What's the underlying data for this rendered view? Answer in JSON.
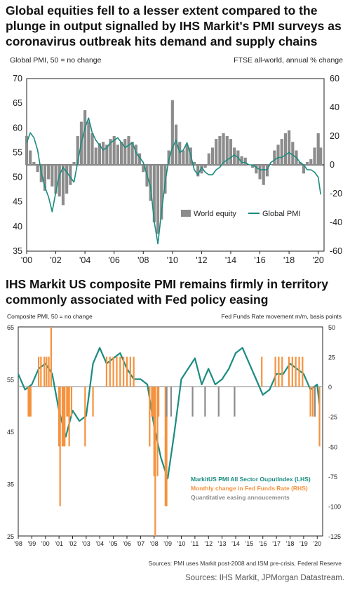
{
  "chart1": {
    "title": "Global equities fell to a lesser extent compared to the plunge in output signalled by IHS Markit's PMI surveys as coronavirus outbreak hits demand and supply chains",
    "left_axis_note": "Global PMI, 50 = no change",
    "right_axis_note": "FTSE all-world,  annual % change",
    "colors": {
      "bar": "#8c8c8c",
      "line": "#1a8c80",
      "zero": "#000000"
    }
  },
  "chart2": {
    "title": "IHS Markit US composite PMI remains firmly in territory commonly associated with Fed policy easing",
    "left_axis_note": "Composite PMI, 50 = no change",
    "right_axis_note": "Fed Funds Rate movement m/m,  basis points",
    "footer_note": "Sources: PMI uses Markit post-2008 and ISM pre-crisis, Federal Reserve",
    "colors": {
      "line": "#1a8c80",
      "orange": "#f5923e",
      "grey": "#8c8c8c",
      "zero": "#999999"
    }
  },
  "source": "Sources: IHS Markit, JPMorgan Datastream.",
  "chart_data": [
    {
      "type": "bar+line",
      "title": "Global equities fell to a lesser extent compared to the plunge in output signalled by IHS Markit's PMI surveys as coronavirus outbreak hits demand and supply chains",
      "ylabel_left": "Global PMI, 50 = no change",
      "ylabel_right": "FTSE all-world,  annual % change",
      "ylim_left": [
        35,
        70
      ],
      "ylim_right": [
        -60,
        60
      ],
      "yticks_left": [
        "70",
        "65",
        "60",
        "55",
        "50",
        "45",
        "40",
        "35"
      ],
      "yticks_right": [
        "60",
        "40",
        "20",
        "0",
        "-20",
        "-40",
        "-60"
      ],
      "xlim": [
        2000,
        2020.4
      ],
      "xticks": [
        "'00",
        "'02",
        "'04",
        "'06",
        "'08",
        "'10",
        "'12",
        "'14",
        "'16",
        "'18",
        "'20"
      ],
      "legend": [
        "World equity",
        "Global PMI"
      ],
      "legend_position": "bottom-right",
      "series": [
        {
          "name": "World equity",
          "kind": "bar",
          "axis": "right",
          "x": [
            2000.0,
            2000.25,
            2000.5,
            2000.75,
            2001.0,
            2001.25,
            2001.5,
            2001.75,
            2002.0,
            2002.25,
            2002.5,
            2002.75,
            2003.0,
            2003.25,
            2003.5,
            2003.75,
            2004.0,
            2004.25,
            2004.5,
            2004.75,
            2005.0,
            2005.25,
            2005.5,
            2005.75,
            2006.0,
            2006.25,
            2006.5,
            2006.75,
            2007.0,
            2007.25,
            2007.5,
            2007.75,
            2008.0,
            2008.25,
            2008.5,
            2008.75,
            2009.0,
            2009.25,
            2009.5,
            2009.75,
            2010.0,
            2010.25,
            2010.5,
            2010.75,
            2011.0,
            2011.25,
            2011.5,
            2011.75,
            2012.0,
            2012.25,
            2012.5,
            2012.75,
            2013.0,
            2013.25,
            2013.5,
            2013.75,
            2014.0,
            2014.25,
            2014.5,
            2014.75,
            2015.0,
            2015.25,
            2015.5,
            2015.75,
            2016.0,
            2016.25,
            2016.5,
            2016.75,
            2017.0,
            2017.25,
            2017.5,
            2017.75,
            2018.0,
            2018.25,
            2018.5,
            2018.75,
            2019.0,
            2019.25,
            2019.5,
            2019.75,
            2020.0,
            2020.17
          ],
          "values": [
            20,
            10,
            2,
            -5,
            -12,
            -18,
            -10,
            -15,
            -20,
            -22,
            -28,
            -20,
            -14,
            2,
            20,
            30,
            38,
            30,
            22,
            12,
            15,
            16,
            14,
            18,
            20,
            14,
            16,
            18,
            20,
            16,
            14,
            8,
            -5,
            -15,
            -25,
            -40,
            -48,
            -38,
            -20,
            10,
            45,
            28,
            16,
            10,
            14,
            12,
            2,
            -8,
            -6,
            -2,
            8,
            12,
            18,
            20,
            22,
            20,
            18,
            12,
            10,
            6,
            5,
            0,
            -2,
            -6,
            -10,
            -14,
            -8,
            0,
            10,
            14,
            18,
            22,
            24,
            16,
            10,
            2,
            -6,
            2,
            4,
            12,
            22,
            12
          ]
        },
        {
          "name": "Global PMI",
          "kind": "line",
          "axis": "left",
          "x": [
            2000.0,
            2000.25,
            2000.5,
            2000.75,
            2001.0,
            2001.25,
            2001.5,
            2001.75,
            2002.0,
            2002.25,
            2002.5,
            2002.75,
            2003.0,
            2003.25,
            2003.5,
            2003.75,
            2004.0,
            2004.25,
            2004.5,
            2004.75,
            2005.0,
            2005.25,
            2005.5,
            2005.75,
            2006.0,
            2006.25,
            2006.5,
            2006.75,
            2007.0,
            2007.25,
            2007.5,
            2007.75,
            2008.0,
            2008.25,
            2008.5,
            2008.75,
            2009.0,
            2009.25,
            2009.5,
            2009.75,
            2010.0,
            2010.25,
            2010.5,
            2010.75,
            2011.0,
            2011.25,
            2011.5,
            2011.75,
            2012.0,
            2012.25,
            2012.5,
            2012.75,
            2013.0,
            2013.25,
            2013.5,
            2013.75,
            2014.0,
            2014.25,
            2014.5,
            2014.75,
            2015.0,
            2015.25,
            2015.5,
            2015.75,
            2016.0,
            2016.25,
            2016.5,
            2016.75,
            2017.0,
            2017.25,
            2017.5,
            2017.75,
            2018.0,
            2018.25,
            2018.5,
            2018.75,
            2019.0,
            2019.25,
            2019.5,
            2019.75,
            2020.0,
            2020.17
          ],
          "values": [
            57,
            59,
            58,
            55.5,
            51,
            48,
            46,
            43,
            47,
            50.5,
            52,
            51,
            50,
            49,
            53,
            57,
            60,
            62,
            59,
            57.5,
            56.5,
            55.5,
            56,
            57,
            57.5,
            58,
            57,
            56,
            56.5,
            57,
            55,
            54,
            53,
            50.5,
            48,
            41,
            36.5,
            43,
            49,
            53.5,
            56,
            57.5,
            55,
            55.5,
            57,
            54.5,
            51.5,
            50.5,
            52,
            51,
            50.5,
            50.5,
            51.5,
            52,
            53,
            53.5,
            54,
            54.5,
            54,
            53,
            53,
            52.5,
            52.5,
            52,
            51.5,
            51.5,
            51.5,
            53,
            53.5,
            54,
            54,
            54.5,
            55,
            54.5,
            54,
            53,
            52.5,
            51.5,
            51.5,
            51,
            50,
            46.5
          ]
        }
      ]
    },
    {
      "type": "bar+line",
      "title": "IHS Markit US composite PMI remains firmly in territory commonly associated with Fed policy easing",
      "ylabel_left": "Composite PMI, 50 = no change",
      "ylabel_right": "Fed Funds Rate movement m/m,  basis points",
      "ylim_left": [
        25,
        65
      ],
      "ylim_right": [
        -125,
        50
      ],
      "yticks_left": [
        "65",
        "55",
        "45",
        "35",
        "25"
      ],
      "yticks_right": [
        "50",
        "25",
        "0",
        "-25",
        "-50",
        "-75",
        "-100",
        "-125"
      ],
      "xlim": [
        1998,
        2020.4
      ],
      "xticks": [
        "'98",
        "'99",
        "'00",
        "'01",
        "'02",
        "'03",
        "'04",
        "'05",
        "'06",
        "'07",
        "'08",
        "'09",
        "'10",
        "'11",
        "'12",
        "'13",
        "'14",
        "'15",
        "'16",
        "'17",
        "'18",
        "'19",
        "'20"
      ],
      "legend": [
        "MarkitUS PMI All Sector OuputIndex (LHS)",
        "Monthly change in Fed Funds Rate (RHS)",
        "Quantitative easing annoucements"
      ],
      "legend_position": "bottom-right",
      "series": [
        {
          "name": "MarkitUS PMI All Sector OuputIndex (LHS)",
          "kind": "line",
          "axis": "left",
          "x": [
            1998.0,
            1998.5,
            1999.0,
            1999.5,
            2000.0,
            2000.5,
            2001.0,
            2001.5,
            2002.0,
            2002.5,
            2003.0,
            2003.5,
            2004.0,
            2004.5,
            2005.0,
            2005.5,
            2006.0,
            2006.5,
            2007.0,
            2007.5,
            2008.0,
            2008.5,
            2009.0,
            2009.5,
            2010.0,
            2010.5,
            2011.0,
            2011.5,
            2012.0,
            2012.5,
            2013.0,
            2013.5,
            2014.0,
            2014.5,
            2015.0,
            2015.5,
            2016.0,
            2016.5,
            2017.0,
            2017.5,
            2018.0,
            2018.5,
            2019.0,
            2019.5,
            2020.0,
            2020.17
          ],
          "values": [
            56,
            53,
            54,
            57,
            58,
            56,
            49,
            44,
            49,
            47,
            48,
            58,
            61,
            58,
            59,
            60,
            57,
            55,
            55,
            54,
            46,
            40,
            36,
            45,
            55,
            57,
            59,
            54,
            57,
            54,
            55,
            57,
            60,
            61,
            58,
            55,
            52,
            53,
            56,
            56,
            58,
            57,
            56,
            53,
            54,
            50
          ]
        },
        {
          "name": "Monthly change in Fed Funds Rate (RHS)",
          "kind": "bar",
          "axis": "right",
          "x": [
            1998.75,
            1998.83,
            1998.92,
            1999.5,
            1999.67,
            1999.92,
            2000.08,
            2000.25,
            2000.42,
            2001.0,
            2001.08,
            2001.25,
            2001.33,
            2001.42,
            2001.58,
            2001.67,
            2001.75,
            2001.92,
            2002.92,
            2003.5,
            2004.5,
            2004.75,
            2005.0,
            2005.25,
            2005.5,
            2005.75,
            2006.0,
            2006.25,
            2006.5,
            2007.67,
            2007.83,
            2007.92,
            2008.0,
            2008.08,
            2008.25,
            2008.33,
            2008.83,
            2008.92,
            2015.92,
            2016.92,
            2017.17,
            2017.42,
            2017.92,
            2018.17,
            2018.42,
            2018.67,
            2018.92,
            2019.5,
            2019.67,
            2019.83,
            2020.17
          ],
          "values": [
            -25,
            -25,
            -25,
            25,
            25,
            25,
            25,
            25,
            50,
            -50,
            -100,
            -50,
            -50,
            -50,
            -25,
            -25,
            -50,
            -25,
            -50,
            -25,
            25,
            25,
            25,
            25,
            25,
            25,
            25,
            25,
            25,
            -50,
            -25,
            -25,
            -75,
            -125,
            -75,
            -25,
            -100,
            -100,
            25,
            25,
            25,
            25,
            25,
            25,
            25,
            25,
            25,
            -25,
            -25,
            -25,
            -50
          ]
        },
        {
          "name": "Quantitative easing annoucements",
          "kind": "bar",
          "axis": "right",
          "x": [
            2008.92,
            2009.25,
            2010.83,
            2011.75,
            2012.75,
            2013.92,
            2019.83
          ],
          "values": [
            -25,
            -25,
            -25,
            -25,
            -25,
            -25,
            -25
          ]
        }
      ]
    }
  ]
}
